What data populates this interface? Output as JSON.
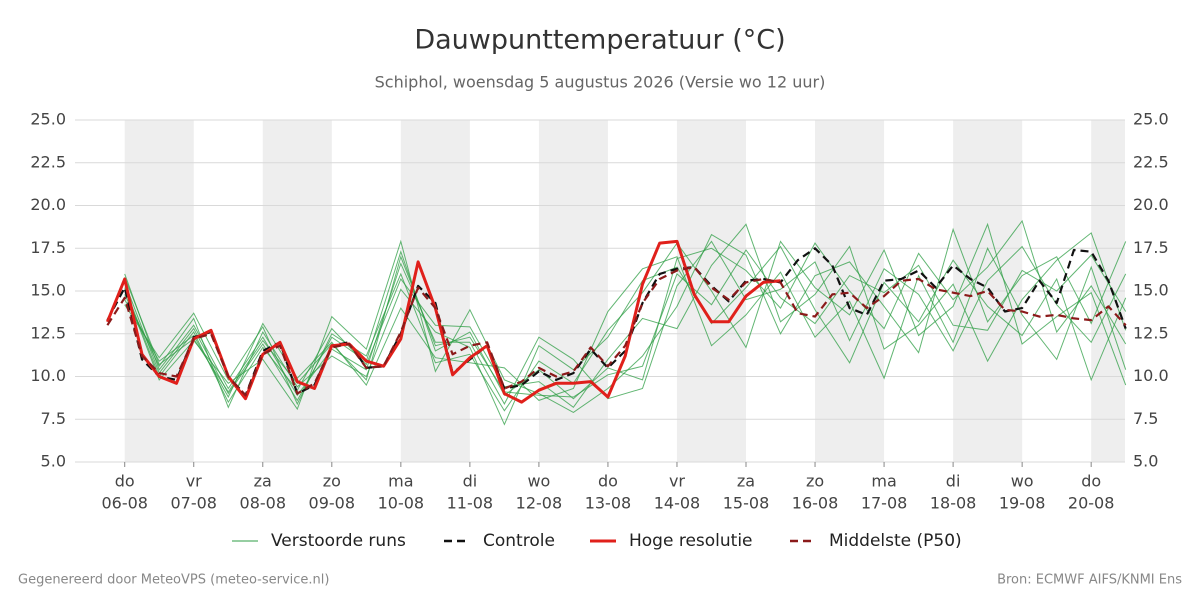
{
  "chart_data": {
    "type": "line",
    "title": "Dauwpunttemperatuur (°C)",
    "subtitle": "Schiphol, woensdag  5 augustus 2026 (Versie wo 12 uur)",
    "footer_left": "Gegenereerd door MeteoVPS (meteo-service.nl)",
    "footer_right": "Bron: ECMWF AIFS/KNMI Ens",
    "xlim": [
      5.28,
      20.49
    ],
    "ylim": [
      5,
      25
    ],
    "yticks": [
      {
        "value": 5,
        "label": "5.0"
      },
      {
        "value": 7.5,
        "label": "7.5"
      },
      {
        "value": 10,
        "label": "10.0"
      },
      {
        "value": 12.5,
        "label": "12.5"
      },
      {
        "value": 15,
        "label": "15.0"
      },
      {
        "value": 17.5,
        "label": "17.5"
      },
      {
        "value": 20,
        "label": "20.0"
      },
      {
        "value": 22.5,
        "label": "22.5"
      },
      {
        "value": 25,
        "label": "25.0"
      }
    ],
    "xticks": [
      {
        "value": 6,
        "weekday": "do",
        "label": "06-08"
      },
      {
        "value": 7,
        "weekday": "vr",
        "label": "07-08"
      },
      {
        "value": 8,
        "weekday": "za",
        "label": "08-08"
      },
      {
        "value": 9,
        "weekday": "zo",
        "label": "09-08"
      },
      {
        "value": 10,
        "weekday": "ma",
        "label": "10-08"
      },
      {
        "value": 11,
        "weekday": "di",
        "label": "11-08"
      },
      {
        "value": 12,
        "weekday": "wo",
        "label": "12-08"
      },
      {
        "value": 13,
        "weekday": "do",
        "label": "13-08"
      },
      {
        "value": 14,
        "weekday": "vr",
        "label": "14-08"
      },
      {
        "value": 15,
        "weekday": "za",
        "label": "15-08"
      },
      {
        "value": 16,
        "weekday": "zo",
        "label": "16-08"
      },
      {
        "value": 17,
        "weekday": "ma",
        "label": "17-08"
      },
      {
        "value": 18,
        "weekday": "di",
        "label": "18-08"
      },
      {
        "value": 19,
        "weekday": "wo",
        "label": "19-08"
      },
      {
        "value": 20,
        "weekday": "do",
        "label": "20-08"
      }
    ],
    "grid": true,
    "ensemble": {
      "name": "Verstoorde runs",
      "color": "#2e9e44",
      "x": [
        6,
        6.5,
        7,
        7.5,
        8,
        8.5,
        9,
        9.5,
        10,
        10.5,
        11,
        11.5,
        12,
        12.5,
        13,
        13.5,
        14,
        14.5,
        15,
        15.5,
        16,
        16.5,
        17,
        17.5,
        18,
        18.5,
        19,
        19.5,
        20,
        20.5
      ],
      "runs": [
        [
          15.5,
          10.2,
          12.8,
          9.0,
          11.9,
          8.6,
          12.3,
          10.9,
          17.3,
          11.5,
          12.6,
          8.9,
          10.4,
          8.7,
          10.5,
          9.8,
          16.9,
          17.5,
          16.2,
          14.0,
          17.8,
          15.0,
          12.8,
          17.2,
          14.5,
          16.4,
          19.1,
          12.6,
          15.3,
          11.9
        ],
        [
          14.8,
          10.6,
          13.4,
          8.2,
          12.6,
          9.4,
          11.2,
          10.0,
          15.1,
          12.6,
          11.7,
          7.2,
          11.8,
          10.4,
          12.3,
          15.6,
          16.4,
          13.1,
          15.2,
          17.6,
          13.9,
          10.8,
          15.5,
          13.2,
          16.8,
          14.1,
          12.4,
          15.7,
          9.8,
          14.6
        ],
        [
          15.1,
          9.8,
          12.1,
          9.6,
          11.0,
          8.1,
          13.5,
          11.6,
          17.9,
          10.3,
          13.9,
          9.8,
          9.0,
          7.9,
          9.3,
          11.2,
          14.1,
          18.3,
          17.1,
          12.5,
          15.9,
          16.7,
          14.1,
          11.4,
          18.6,
          13.2,
          15.9,
          17.0,
          13.1,
          17.9
        ],
        [
          14.5,
          10.9,
          12.4,
          8.8,
          13.1,
          9.9,
          12.0,
          9.5,
          14.0,
          11.1,
          10.8,
          10.5,
          8.6,
          9.3,
          13.8,
          16.3,
          17.0,
          11.8,
          13.6,
          16.1,
          12.3,
          14.4,
          9.9,
          15.9,
          12.0,
          17.5,
          13.6,
          11.0,
          16.4,
          10.4
        ],
        [
          16.0,
          10.4,
          13.0,
          9.3,
          12.3,
          8.9,
          11.6,
          10.4,
          16.6,
          12.0,
          12.0,
          8.4,
          12.3,
          11.0,
          8.7,
          9.3,
          15.3,
          17.9,
          14.5,
          15.1,
          16.7,
          12.1,
          16.3,
          14.8,
          11.5,
          15.6,
          17.6,
          14.2,
          12.0,
          16.0
        ],
        [
          15.2,
          10.0,
          12.6,
          8.5,
          11.7,
          9.2,
          12.8,
          10.7,
          15.7,
          13.0,
          12.9,
          9.4,
          9.7,
          8.2,
          11.0,
          13.4,
          12.8,
          16.5,
          18.9,
          13.2,
          14.8,
          17.6,
          11.6,
          13.0,
          15.4,
          10.9,
          14.5,
          16.8,
          18.4,
          12.7
        ],
        [
          14.2,
          11.1,
          13.7,
          9.8,
          12.9,
          8.4,
          12.5,
          11.2,
          16.0,
          10.8,
          11.3,
          8.0,
          10.9,
          9.6,
          12.7,
          14.9,
          17.8,
          15.0,
          11.7,
          17.9,
          15.2,
          13.6,
          17.4,
          12.4,
          14.1,
          18.9,
          11.9,
          13.5,
          14.9,
          9.5
        ],
        [
          15.8,
          10.7,
          12.2,
          9.1,
          12.1,
          9.6,
          11.9,
          9.8,
          17.0,
          11.8,
          12.3,
          9.1,
          8.9,
          8.8,
          10.1,
          10.6,
          16.0,
          14.2,
          17.4,
          14.6,
          13.1,
          15.9,
          14.9,
          16.5,
          13.0,
          12.7,
          16.2,
          15.0,
          17.1,
          13.8
        ]
      ]
    },
    "series": [
      {
        "name": "Controle",
        "color": "#111111",
        "dash": true,
        "x": [
          5.75,
          6,
          6.25,
          6.5,
          6.75,
          7,
          7.25,
          7.5,
          7.75,
          8,
          8.25,
          8.5,
          8.75,
          9,
          9.25,
          9.5,
          9.75,
          10,
          10.25,
          10.5,
          10.75,
          11,
          11.25,
          11.5,
          11.75,
          12,
          12.25,
          12.5,
          12.75,
          13,
          13.25,
          13.5,
          13.75,
          14,
          14.25,
          14.5,
          14.75,
          15,
          15.25,
          15.5,
          15.75,
          16,
          16.25,
          16.5,
          16.75,
          17,
          17.25,
          17.5,
          17.75,
          18,
          18.25,
          18.5,
          18.75,
          19,
          19.25,
          19.5,
          19.75,
          20,
          20.25,
          20.5
        ],
        "values": [
          13.3,
          15.2,
          11.0,
          10.0,
          9.8,
          12.3,
          12.6,
          10.0,
          8.9,
          11.5,
          12.0,
          9.0,
          9.5,
          11.8,
          12.0,
          10.5,
          10.6,
          12.5,
          15.3,
          14.3,
          10.2,
          11.0,
          11.8,
          9.3,
          9.5,
          10.3,
          9.8,
          10.2,
          11.6,
          10.5,
          11.5,
          14.3,
          16.0,
          16.3,
          16.4,
          15.3,
          14.4,
          15.6,
          15.7,
          15.5,
          16.8,
          17.5,
          16.5,
          14.0,
          13.6,
          15.6,
          15.7,
          16.2,
          15.2,
          16.5,
          15.7,
          15.2,
          13.8,
          14.0,
          15.6,
          14.3,
          17.4,
          17.3,
          15.6,
          12.8
        ]
      },
      {
        "name": "Hoge resolutie",
        "color": "#e0201b",
        "dash": false,
        "x": [
          5.75,
          6,
          6.25,
          6.5,
          6.75,
          7,
          7.25,
          7.5,
          7.75,
          8,
          8.25,
          8.5,
          8.75,
          9,
          9.25,
          9.5,
          9.75,
          10,
          10.25,
          10.5,
          10.75,
          11,
          11.25,
          11.5,
          11.75,
          12,
          12.25,
          12.5,
          12.75,
          13,
          13.25,
          13.5,
          13.75,
          14,
          14.25,
          14.5,
          14.75,
          15,
          15.25,
          15.5
        ],
        "values": [
          13.2,
          15.7,
          11.3,
          10.0,
          9.6,
          12.2,
          12.7,
          10.0,
          8.7,
          11.3,
          12.0,
          9.7,
          9.3,
          11.8,
          11.9,
          10.9,
          10.6,
          12.2,
          16.7,
          14.0,
          10.1,
          11.1,
          11.8,
          9.0,
          8.5,
          9.2,
          9.6,
          9.6,
          9.7,
          8.8,
          11.2,
          15.4,
          17.8,
          17.9,
          14.8,
          13.2,
          13.2,
          14.7,
          15.5,
          15.6
        ]
      },
      {
        "name": "Middelste (P50)",
        "color": "#8b1a1a",
        "dash": true,
        "x": [
          5.75,
          6,
          6.25,
          6.5,
          6.75,
          7,
          7.25,
          7.5,
          7.75,
          8,
          8.25,
          8.5,
          8.75,
          9,
          9.25,
          9.5,
          9.75,
          10,
          10.25,
          10.5,
          10.75,
          11,
          11.25,
          11.5,
          11.75,
          12,
          12.25,
          12.5,
          12.75,
          13,
          13.25,
          13.5,
          13.75,
          14,
          14.25,
          14.5,
          14.75,
          15,
          15.25,
          15.5,
          15.75,
          16,
          16.25,
          16.5,
          16.75,
          17,
          17.25,
          17.5,
          17.75,
          18,
          18.25,
          18.5,
          18.75,
          19,
          19.25,
          19.5,
          19.75,
          20,
          20.25,
          20.5
        ],
        "values": [
          13.0,
          14.6,
          11.2,
          10.2,
          10.0,
          12.2,
          12.5,
          10.0,
          8.9,
          11.3,
          11.8,
          9.0,
          9.6,
          11.7,
          11.9,
          10.5,
          10.6,
          12.6,
          15.2,
          14.0,
          11.3,
          11.8,
          12.0,
          9.3,
          9.7,
          10.5,
          10.0,
          10.3,
          11.7,
          10.6,
          11.8,
          14.3,
          15.7,
          16.2,
          16.4,
          15.2,
          14.5,
          15.5,
          15.7,
          15.5,
          13.7,
          13.5,
          14.8,
          14.9,
          14.0,
          14.7,
          15.6,
          15.7,
          15.1,
          14.9,
          14.7,
          15.0,
          13.9,
          13.8,
          13.5,
          13.6,
          13.4,
          13.3,
          14.1,
          13.0
        ]
      }
    ]
  }
}
